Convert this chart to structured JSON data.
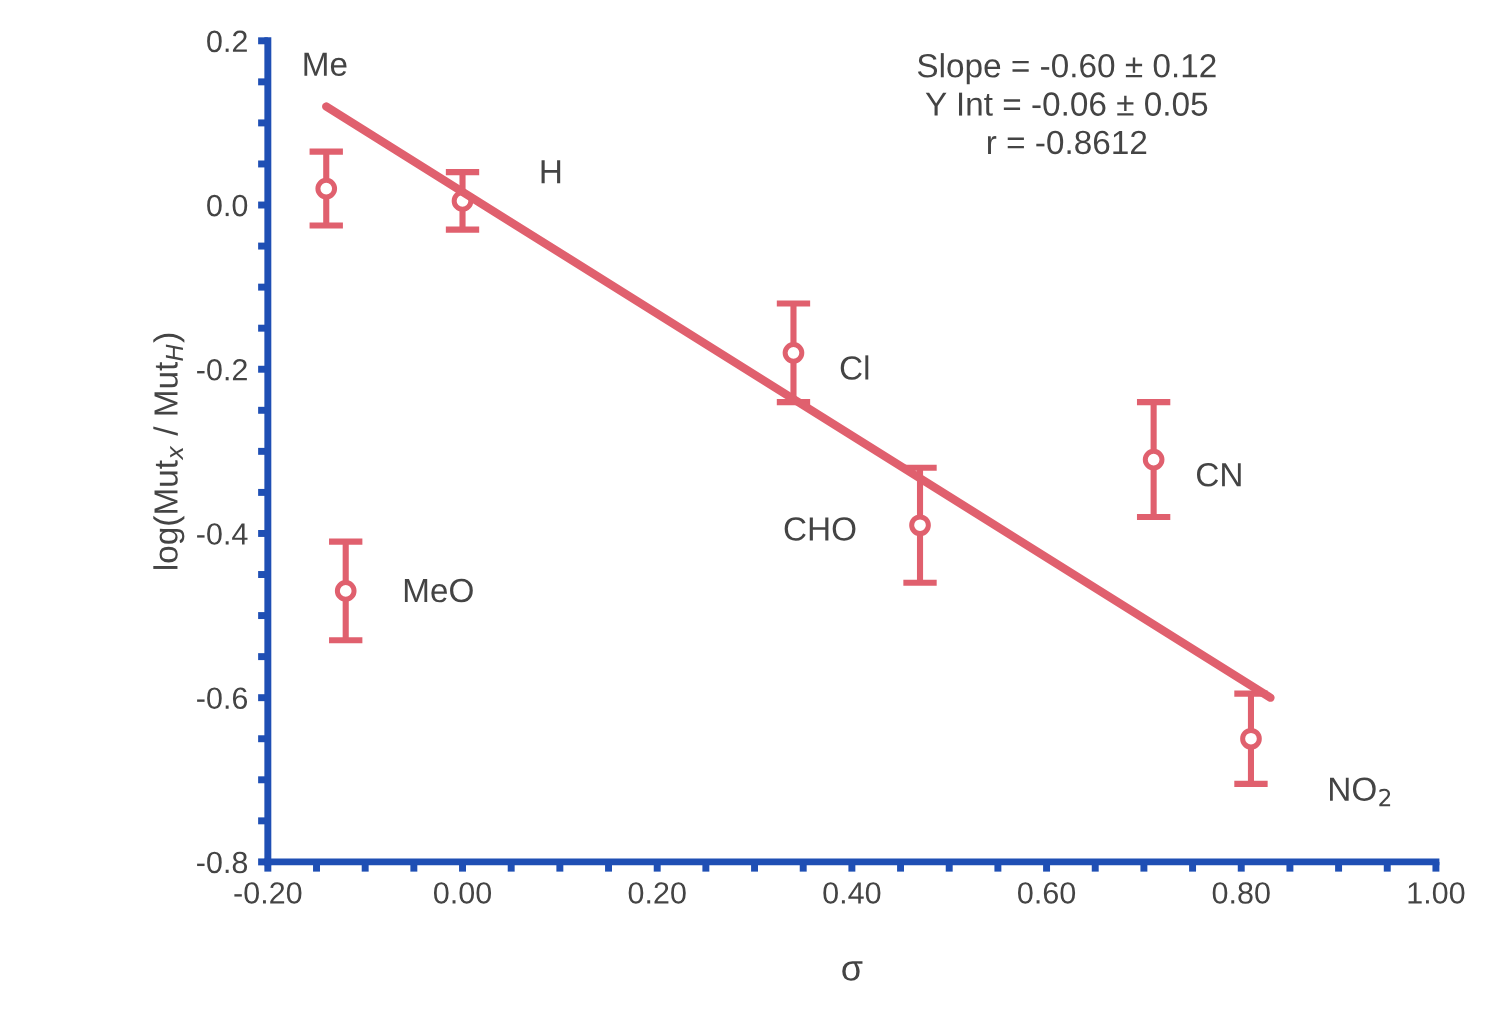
{
  "chart_data": {
    "type": "scatter",
    "xlabel": "σ",
    "ylabel": "log(Mut$_{x}$ / Mut$_{H}$)",
    "x": [
      -0.14,
      0.0,
      0.34,
      0.47,
      0.71,
      -0.12,
      0.81
    ],
    "series": [
      {
        "color": "#e0606e",
        "values": [
          0.02,
          0.005,
          -0.18,
          -0.39,
          -0.31,
          -0.47,
          -0.65
        ],
        "errors": [
          0.045,
          0.035,
          0.06,
          0.07,
          0.07,
          0.06,
          0.055
        ],
        "marker": "circle"
      },
      {
        "type": "line",
        "color": "#e0606e",
        "x": [
          -0.14,
          0.83
        ],
        "values": [
          0.12,
          -0.6
        ],
        "line_style": "solid",
        "marker": "none"
      }
    ],
    "annotations": [
      "Me",
      "H",
      "Cl",
      "CHO",
      "CN",
      "MeO",
      "NO$_{2}$",
      "Slope = -0.60 ± 0.12\nY Int = -0.06 ± 0.05\nr = -0.8612"
    ],
    "xlim": [
      -0.2,
      1.0
    ],
    "ylim": [
      -0.8,
      0.2
    ],
    "xticks": [
      {
        "value": -0.2,
        "label": "-0.20"
      },
      {
        "value": -0.15,
        "label": null
      },
      {
        "value": -0.1,
        "label": null
      },
      {
        "value": -0.05,
        "label": null
      },
      {
        "value": 0.0,
        "label": "0.00"
      },
      {
        "value": 0.05,
        "label": null
      },
      {
        "value": 0.1,
        "label": null
      },
      {
        "value": 0.15,
        "label": null
      },
      {
        "value": 0.2,
        "label": "0.20"
      },
      {
        "value": 0.25,
        "label": null
      },
      {
        "value": 0.3,
        "label": null
      },
      {
        "value": 0.35,
        "label": null
      },
      {
        "value": 0.4,
        "label": "0.40"
      },
      {
        "value": 0.45,
        "label": null
      },
      {
        "value": 0.5,
        "label": null
      },
      {
        "value": 0.55,
        "label": null
      },
      {
        "value": 0.6,
        "label": "0.60"
      },
      {
        "value": 0.65,
        "label": null
      },
      {
        "value": 0.7,
        "label": null
      },
      {
        "value": 0.75,
        "label": null
      },
      {
        "value": 0.8,
        "label": "0.80"
      },
      {
        "value": 0.85,
        "label": null
      },
      {
        "value": 0.9,
        "label": null
      },
      {
        "value": 0.95,
        "label": null
      },
      {
        "value": 1.0,
        "label": "1.00"
      }
    ],
    "yticks": [
      {
        "value": -0.8,
        "label": "-0.8"
      },
      {
        "value": -0.75,
        "label": null
      },
      {
        "value": -0.7,
        "label": null
      },
      {
        "value": -0.65,
        "label": null
      },
      {
        "value": -0.6,
        "label": "-0.6"
      },
      {
        "value": -0.55,
        "label": null
      },
      {
        "value": -0.5,
        "label": null
      },
      {
        "value": -0.45,
        "label": null
      },
      {
        "value": -0.4,
        "label": "-0.4"
      },
      {
        "value": -0.35,
        "label": null
      },
      {
        "value": -0.3,
        "label": null
      },
      {
        "value": -0.25,
        "label": null
      },
      {
        "value": -0.2,
        "label": "-0.2"
      },
      {
        "value": -0.15,
        "label": null
      },
      {
        "value": -0.1,
        "label": null
      },
      {
        "value": -0.05,
        "label": null
      },
      {
        "value": 0.0,
        "label": "0.0"
      },
      {
        "value": 0.05,
        "label": null
      },
      {
        "value": 0.1,
        "label": null
      },
      {
        "value": 0.15,
        "label": null
      },
      {
        "value": 0.2,
        "label": "0.2"
      }
    ],
    "grid": false,
    "legend": false
  }
}
